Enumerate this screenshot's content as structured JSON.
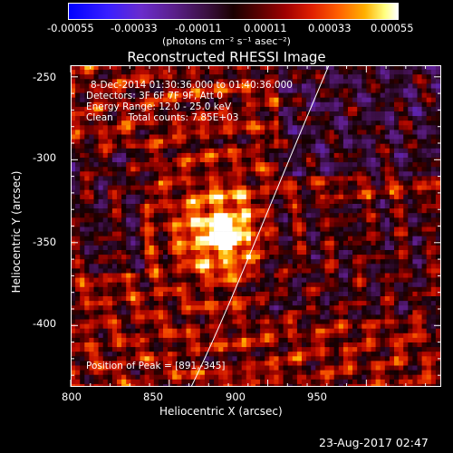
{
  "colorbar": {
    "ticks": [
      "-0.00055",
      "-0.00033",
      "-0.00011",
      "0.00011",
      "0.00033",
      "0.00055"
    ],
    "unit_label": "(photons cm⁻² s⁻¹ asec⁻²)",
    "colors": [
      "#0000ff",
      "#5a1f8a",
      "#1a0000",
      "#a00000",
      "#ff6000",
      "#ffffff"
    ]
  },
  "title": "Reconstructed RHESSI Image",
  "info": {
    "line1": "8-Dec-2014 01:30:36.000 to 01:40:36.000",
    "line2": "Detectors: 3F 6F 7F 9F, Att 0",
    "line3": "Energy Range: 12.0 - 25.0 keV",
    "line4": "Clean     Total counts: 7.85E+03"
  },
  "peak_label": "Position of Peak = [891,-345]",
  "axes": {
    "xlabel": "Heliocentric X (arcsec)",
    "ylabel": "Heliocentric Y (arcsec)",
    "xticks": [
      "800",
      "850",
      "900",
      "950"
    ],
    "yticks": [
      "-250",
      "-300",
      "-350",
      "-400"
    ],
    "xlim": [
      800,
      988
    ],
    "ylim": [
      -437,
      -243
    ]
  },
  "peak": {
    "x": 891,
    "y": -345
  },
  "timestamp": "23-Aug-2017 02:47"
}
